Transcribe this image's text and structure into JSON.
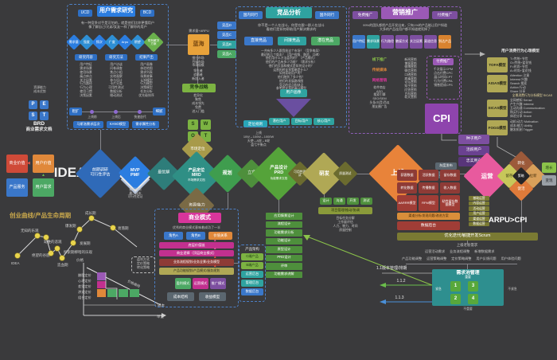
{
  "research": {
    "tab_left": "UCD",
    "title": "用户需求研究",
    "tab_right": "BCD",
    "intro": [
      "有一种竞争对手是可怕的，就是他们比你更懂用户",
      "像了解自己/兄弟/女友一样了解你的用户"
    ],
    "diamonds": [
      "需求量",
      "强度",
      "频次",
      "广度",
      "Arpu",
      "期望",
      "现有解决方案"
    ],
    "headers": [
      "研究内容",
      "研究方法",
      "结果产出"
    ],
    "content_items": [
      "用户特征",
      "需求场景",
      "使用场景",
      "痛点痒点",
      "关注因素",
      "行为路径",
      "行为心理",
      "使用习惯",
      "决策因素"
    ],
    "method_items": [
      "用户访谈",
      "问卷调查",
      "焦点小组",
      "实地观察",
      "参与设计",
      "卡片分类",
      "可用性测试",
      "数据分析",
      "眼动测试"
    ],
    "output_items": [
      "用户画像",
      "体验地图",
      "需求列表",
      "场景故事",
      "认知模型",
      "行为模型",
      "决策模型",
      "任务分析",
      "优先级排序"
    ],
    "timeline": {
      "left": "粗犷",
      "right": "细腻",
      "dots": [
        "上线前",
        "上线后",
        "快速迭代"
      ]
    },
    "tools": [
      "马斯洛需求层次",
      "KANO模型",
      "需求属性分析"
    ]
  },
  "pest": {
    "pre": [
      "资源能力",
      "成本优势"
    ],
    "letters": [
      "P",
      "E",
      "S",
      "T"
    ],
    "brd": "BRD",
    "brd_sub": "商业需求文档"
  },
  "idea": {
    "boxes": [
      "商业价值",
      "用户价值",
      "产品服务",
      "用户需求"
    ],
    "label": "IDEA"
  },
  "bluesea": {
    "above": "需求量+ARPU",
    "label": "蓝海",
    "below": [
      "细分市场",
      "目标市场",
      "市场规模"
    ],
    "competitors": [
      "竞品D",
      "竞品C",
      "竞品B",
      "竞品A"
    ]
  },
  "strategy": {
    "above": [
      "领先者",
      "追随者",
      "新加入者"
    ],
    "title": "竞争战略",
    "items": [
      "差异化",
      "聚焦",
      "成本领先",
      "免费",
      "进入门槛"
    ],
    "swot": [
      "S",
      "W",
      "O",
      "T"
    ]
  },
  "positioning": {
    "rule": "定位规则",
    "lines": [
      "上线",
      "10W→100W→1000W",
      "天使→A轮→B轮",
      "盈亏平衡点"
    ]
  },
  "flow": {
    "d1a": "前期调研",
    "d1b": "可行性评估",
    "mvpa": "MVP",
    "mvpb": "PMF",
    "mvp_notes": [
      "最短时间",
      "最小成本",
      "可行性验证"
    ],
    "best": "最优解",
    "mrda": "产品定位",
    "mrdb": "MRD",
    "mrdc": "市场需求文档",
    "plan": "规划",
    "market_pos": "市场定位",
    "resource": "资源/能力",
    "lixiang": "立项",
    "prda": "产品设计",
    "prdb": "PRD",
    "prdc": "功能需求文档",
    "usability": "可用性测试",
    "dev": "研发",
    "qa": "质量测试",
    "launch": "上线"
  },
  "competitor": {
    "tab_left": "国内同行",
    "title": "竞品分析",
    "tab_right": "国外同行",
    "intro": [
      "你不是一个人在战斗，你是在跟一群人在战斗",
      "看他们是如何帮助用户解决需求的"
    ],
    "types": [
      "直接竞品",
      "间接竞品",
      "潜在竞品"
    ],
    "questions": [
      "一共有多少人跟我抢这个市场？（竞争格局）",
      "最初的几个版本？（用户视角、融资、口碑）",
      "他们用什么方法盈利的？（产品模式）",
      "他们的产品有多少功能？（需求分析）",
      "他们的页面和模式是如何设计的？",
      "运营的转化率策略是什么？",
      "如何获取用户的？",
      "他们融到了多少钱？",
      "他们的发展路线图",
      "竞品的优点和缺点",
      "参考转化率的漏斗模型"
    ],
    "persona": "用户画像",
    "funnel_boxes": [
      "潜在用户",
      "目标用户",
      "核心用户"
    ]
  },
  "marketing": {
    "tab_left": "免费推广",
    "title": "营销推广",
    "tab_right": "付费推广",
    "intro": [
      "99%的团队都把产品开发出来，只有1%的产品能让用户知道",
      "大多的产品连用户都不知道就死掉了"
    ],
    "chain": [
      "用户特征",
      "需求场景",
      "行为路径",
      "触媒方式",
      "关注因素",
      "渠道信息",
      "到达产品"
    ],
    "cats": [
      "线下推广",
      "传统媒体",
      "网络营销"
    ],
    "free_items": [
      "软件商店",
      "ASO",
      "搜索引擎",
      "SEO/SEM",
      "头条/抖音/西瓜",
      "朋友圈广告"
    ],
    "net_items": [
      "新闻营销",
      "博客营销",
      "微博营销",
      "微信营销",
      "口碑营销",
      "病毒营销",
      "论坛营销",
      "知乎营销",
      "问答营销",
      "百科营销",
      "软文营销"
    ],
    "paid_title": "付费推广",
    "paid_items": [
      "千次展示CPM",
      "点击付费CPC",
      "展示时间CPT",
      "行为付费CPA",
      "销售提成CPS"
    ],
    "cpi": "CPI"
  },
  "psych": {
    "title": "用户消费行为心理模型",
    "models": [
      {
        "name": "TOFA模型",
        "lines": [
          "T=传统+节俭",
          "O=传统+爱花钱",
          "F=时尚+节俭",
          "A=时尚+爱花钱"
        ]
      },
      {
        "name": "AISAS模型",
        "lines": [
          "Attention 注意",
          "Interest 兴趣",
          "Search 搜索",
          "Action 行动",
          "Share 分享"
        ]
      },
      {
        "name": "SICAS模型",
        "pre": "全景消费行为分析模型 SICAS",
        "lines": [
          "全网感知 Sense",
          "产生兴趣 Interest",
          "互动沟通 Communication",
          "购买行动 Action",
          "体验分享 Share"
        ]
      },
      {
        "name": "FOGG模型",
        "lines": [
          "动机/动力 Motivation",
          "成本/能力 Ability",
          "触发机制 Trigger"
        ]
      }
    ]
  },
  "release": [
    "灰度发布",
    "正式发布"
  ],
  "funnel_users": [
    "种子用户",
    "活跃用户",
    "忠实用户"
  ],
  "ops": {
    "main": "运营",
    "conv": "转化",
    "retain": "留存",
    "strategy": "策略",
    "acquire": "拉新",
    "activate": "促活",
    "list": [
      "基础运营",
      "内容运营",
      "活动运营",
      "用户运营",
      "渠道运营",
      "数据运营"
    ],
    "right": [
      "增长",
      "变现"
    ],
    "arpu": "ARPU>CPI"
  },
  "datasec": {
    "grid": [
      "获客数据",
      "活跃数据",
      "留存数据",
      "转化数据",
      "传播数据",
      "收入数据"
    ],
    "models": [
      "AARRR模型",
      "RFM模型",
      "粘性留存数据模型"
    ],
    "bar1": "渠道分析/发现问题/改进方案",
    "bar2": "数据后台"
  },
  "scrum": "优化迭代/敏捷开发Scrum",
  "reqpool": {
    "row1": "上级老板需求",
    "row2": [
      "运营活动需求",
      "业务流程调整",
      "新增数据需求"
    ],
    "row3": [
      "产品功能调整",
      "运营策略调整",
      "定价策略调整",
      "用户反馈问题",
      "用户体验问题"
    ],
    "title": "需求池管理",
    "top": "重要",
    "left": "紧急",
    "right": "不紧急",
    "bottom": "不重要",
    "cells": [
      "1",
      "3",
      "2",
      "4"
    ],
    "version": "1.1版本管理/排期",
    "v2": "1.1.2",
    "v3": "1.1.3"
  },
  "bizmodel": {
    "title": "商业模式",
    "intro": "优秀的商业模式意味着成功了一半",
    "roles": [
      "角色A",
      "角色B",
      "价值关系"
    ],
    "bars": [
      "底层价值链",
      "商业逻辑（顶层商业模式）",
      "业务流程规划/业务全景/业务模型",
      "产品功能规划/产品模式/服务规划"
    ],
    "modes": [
      "盈利模式",
      "运营模式",
      "推广模式"
    ],
    "bottom": [
      "成本结构",
      "收益模型"
    ]
  },
  "arch": {
    "title": "产品架构",
    "items": [
      "C端产品",
      "B端产品",
      "运营后台",
      "管理后台",
      "数据后台"
    ]
  },
  "prdchain": [
    "应用情景设计",
    "流程设计",
    "功能需求分析",
    "功能设计",
    "原型设计",
    "PRD设计",
    "评审",
    "功能需求讲解"
  ],
  "devblock": {
    "boxes": [
      "设计",
      "沟通",
      "开发",
      "测试"
    ],
    "bar": "项目管理/推动/协调",
    "notes": [
      "目标任务分解",
      "工作量评估",
      "人力、物力、时间",
      "质量控制"
    ]
  },
  "curve": {
    "title": "创业曲线/产品生命周期",
    "idea": "IDEA",
    "l1": "无知的乐观",
    "l2": "幼稚的悲观",
    "l3": "绝望的谷底",
    "l4": "造血期",
    "l5": "探索期柳暗的乐观",
    "l6": "发展期",
    "l7": "爆发期",
    "l8": "成长期",
    "l9": "衰落期"
  },
  "pricing": {
    "y": "价格",
    "x": "单量",
    "curve": "价格曲线",
    "cost": "成本",
    "labels": [
      "撇脂定价",
      "心理定价",
      "差别定价",
      "渗透定价",
      "组合定价"
    ],
    "profit": [
      "盈利方式",
      "定价策略",
      "转化策略"
    ]
  }
}
